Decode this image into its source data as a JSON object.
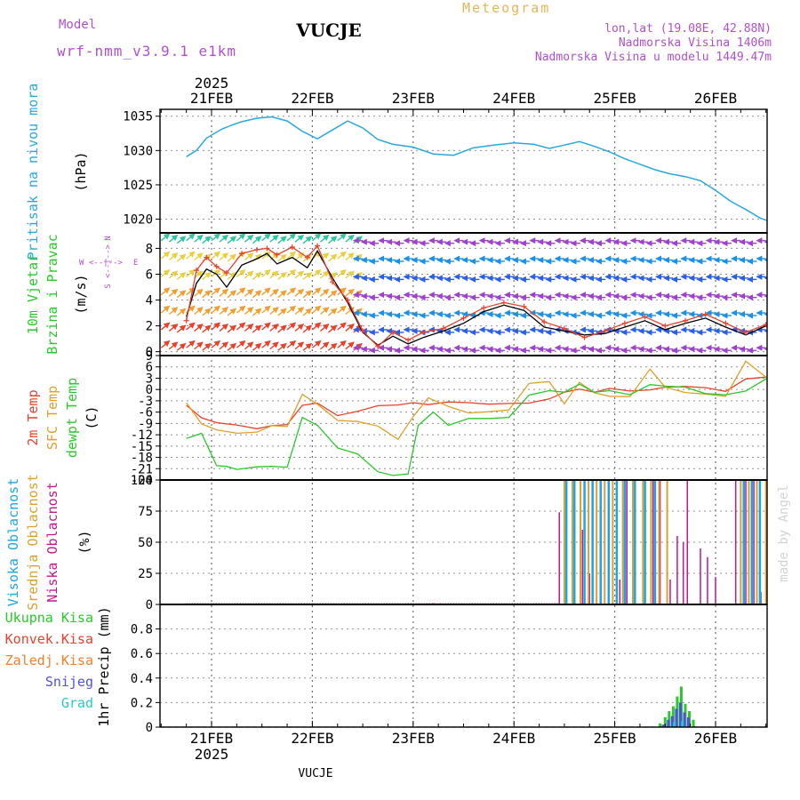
{
  "header": {
    "model_label": "Model",
    "model_name": "wrf-nmm_v3.9.1 e1km",
    "station": "VUCJE",
    "meteogram": "Meteogram",
    "lonlat": "lon,lat (19.08E, 42.88N)",
    "elevation": "Nadmorska Visina 1406m",
    "model_elevation": "Nadmorska Visina u modelu 1449.47m",
    "footer_station": "VUCJE",
    "credit": "made by Angel",
    "year_top": "2025",
    "year_bottom": "2025"
  },
  "colors": {
    "pressure": "#29a8e0",
    "wind_speed": "#000000",
    "wind_gust": "#e8412c",
    "t2m": "#e8412c",
    "tsfc": "#e0a02c",
    "dewpoint": "#2ac82a",
    "cloud_high": "#19a6e6",
    "cloud_mid": "#d9a032",
    "cloud_low": "#c0188c",
    "precip_total": "#2ac82a",
    "precip_conv": "#e8412c",
    "precip_frz": "#f0802c",
    "snow": "#5050e0",
    "hail": "#2ac8c8",
    "title_orange": "#e8b45a",
    "info_purple": "#b050d0"
  },
  "axes": {
    "day_labels": [
      "21FEB",
      "22FEB",
      "23FEB",
      "24FEB",
      "25FEB",
      "26FEB"
    ],
    "time_range_days": [
      0,
      6.0
    ]
  },
  "panel_labels": {
    "pressure": {
      "lines": [
        "Pritisak na nivou mora"
      ],
      "unit": "(hPa)"
    },
    "wind": {
      "lines": [
        "10m Vjetar",
        "Brzina i Pravac"
      ],
      "unit": "(m/s)",
      "compass_n": "N",
      "compass_s": "S",
      "compass_w": "W",
      "compass_e": "E",
      "compass_axis": "<--|-->"
    },
    "temp": {
      "lines": [
        "2m Temp",
        "SFC Temp",
        "dewpt Temp"
      ],
      "unit": "(C)"
    },
    "cloud": {
      "lines": [
        "Visoka Oblacnost",
        "Srednja Oblacnost",
        "Niska Oblacnost"
      ],
      "unit": "(%)"
    },
    "precip": {
      "lines": [
        "Ukupna Kisa",
        "Konvek.Kisa",
        "Zaledj.Kisa",
        "Snijeg",
        "Grad"
      ],
      "unit": "1hr Precip (mm)"
    }
  },
  "chart_data": [
    {
      "type": "line",
      "panel": "pressure",
      "ylabel": "(hPa)",
      "ylim": [
        1018,
        1036
      ],
      "yticks": [
        1020,
        1025,
        1030,
        1035
      ],
      "grid": true,
      "x_unit": "days since 21FEB 00",
      "series": [
        {
          "name": "Pritisak na nivou mora",
          "x": [
            -0.25,
            -0.15,
            -0.05,
            0.1,
            0.2,
            0.3,
            0.45,
            0.6,
            0.75,
            0.9,
            1.05,
            1.2,
            1.35,
            1.5,
            1.65,
            1.8,
            2.0,
            2.2,
            2.4,
            2.6,
            2.8,
            3.0,
            3.2,
            3.35,
            3.5,
            3.65,
            3.8,
            3.95,
            4.1,
            4.25,
            4.4,
            4.55,
            4.7,
            4.85,
            5.0,
            5.15,
            5.3,
            5.45,
            5.6,
            5.75,
            5.9,
            6.05,
            6.25
          ],
          "values": [
            1029.1,
            1030.0,
            1031.8,
            1033.1,
            1033.7,
            1034.2,
            1034.7,
            1034.9,
            1034.3,
            1032.8,
            1031.7,
            1033.0,
            1034.3,
            1033.3,
            1031.6,
            1030.9,
            1030.5,
            1029.5,
            1029.3,
            1030.4,
            1030.8,
            1031.1,
            1030.9,
            1030.3,
            1030.8,
            1031.3,
            1030.6,
            1029.8,
            1028.8,
            1028.0,
            1027.2,
            1026.6,
            1026.2,
            1025.6,
            1024.2,
            1022.6,
            1021.4,
            1020.1,
            1019.4,
            1021.0,
            1021.6,
            1021.8,
            1021.4
          ]
        }
      ]
    },
    {
      "type": "line",
      "panel": "wind",
      "ylabel": "(m/s)",
      "ylim": [
        -0.3,
        9.2
      ],
      "yticks": [
        0,
        2,
        4,
        6,
        8
      ],
      "grid": true,
      "note": "wind direction barbs drawn as colored arrow bands",
      "series": [
        {
          "name": "speed",
          "x": [
            -0.25,
            -0.15,
            -0.05,
            0.05,
            0.15,
            0.3,
            0.45,
            0.55,
            0.65,
            0.8,
            0.95,
            1.05,
            1.2,
            1.35,
            1.5,
            1.65,
            1.8,
            1.95,
            2.1,
            2.3,
            2.5,
            2.7,
            2.9,
            3.1,
            3.3,
            3.5,
            3.7,
            3.9,
            4.1,
            4.3,
            4.5,
            4.7,
            4.9,
            5.1,
            5.3,
            5.5,
            5.7,
            5.9,
            6.1,
            6.25
          ],
          "values": [
            2.7,
            5.3,
            6.4,
            6.0,
            5.0,
            6.7,
            7.2,
            7.6,
            6.8,
            7.3,
            6.5,
            7.8,
            5.7,
            3.8,
            1.5,
            0.5,
            1.2,
            0.6,
            1.1,
            1.6,
            2.2,
            3.1,
            3.6,
            3.2,
            1.9,
            1.6,
            1.3,
            1.4,
            1.9,
            2.4,
            1.7,
            2.2,
            2.6,
            1.9,
            1.3,
            2.0,
            2.4,
            2.5,
            2.3,
            3.2
          ]
        },
        {
          "name": "gust",
          "x": [
            -0.25,
            -0.15,
            -0.05,
            0.05,
            0.15,
            0.3,
            0.45,
            0.55,
            0.65,
            0.8,
            0.95,
            1.05,
            1.2,
            1.35,
            1.5,
            1.65,
            1.8,
            1.95,
            2.1,
            2.3,
            2.5,
            2.7,
            2.9,
            3.1,
            3.3,
            3.5,
            3.7,
            3.9,
            4.1,
            4.3,
            4.5,
            4.7,
            4.9,
            5.1,
            5.3,
            5.5,
            5.7,
            5.9,
            6.1,
            6.25
          ],
          "values": [
            2.4,
            6.3,
            7.3,
            6.6,
            6.1,
            7.6,
            7.9,
            8.0,
            7.5,
            8.1,
            7.3,
            8.2,
            5.4,
            4.0,
            1.6,
            0.4,
            1.5,
            0.9,
            1.5,
            1.8,
            2.6,
            3.4,
            3.8,
            3.5,
            2.3,
            1.8,
            1.1,
            1.6,
            2.2,
            2.7,
            2.0,
            2.4,
            2.9,
            2.2,
            1.5,
            2.1,
            2.2,
            2.3,
            2.2,
            3.4
          ]
        }
      ]
    },
    {
      "type": "line",
      "panel": "temp",
      "ylabel": "(C)",
      "ylim": [
        -24,
        9
      ],
      "yticks": [
        9,
        6,
        3,
        0,
        -3,
        -6,
        -9,
        -12,
        -15,
        -18,
        -21,
        -24
      ],
      "grid": true,
      "series": [
        {
          "name": "2m Temp",
          "x": [
            -0.25,
            -0.1,
            0.05,
            0.25,
            0.45,
            0.6,
            0.75,
            0.9,
            1.05,
            1.25,
            1.45,
            1.65,
            1.85,
            2.0,
            2.15,
            2.35,
            2.55,
            2.75,
            2.95,
            3.15,
            3.35,
            3.5,
            3.65,
            3.8,
            3.95,
            4.15,
            4.35,
            4.5,
            4.7,
            4.9,
            5.1,
            5.3,
            5.5,
            5.7,
            5.9,
            6.05,
            6.25
          ],
          "values": [
            -4.2,
            -7.5,
            -8.8,
            -9.4,
            -10.4,
            -9.6,
            -9.3,
            -4.2,
            -3.6,
            -6.9,
            -5.8,
            -4.3,
            -4.1,
            -3.5,
            -4.0,
            -3.3,
            -3.5,
            -3.9,
            -3.7,
            -3.6,
            -2.5,
            -0.7,
            0.1,
            -0.7,
            0.3,
            -0.4,
            -0.1,
            0.6,
            0.8,
            0.5,
            -0.5,
            2.8,
            3.3,
            0.9,
            -0.1,
            0.4,
            2.5
          ]
        },
        {
          "name": "SFC Temp",
          "x": [
            -0.25,
            -0.1,
            0.05,
            0.25,
            0.45,
            0.6,
            0.75,
            0.9,
            1.05,
            1.25,
            1.45,
            1.65,
            1.85,
            2.0,
            2.15,
            2.35,
            2.55,
            2.75,
            2.95,
            3.15,
            3.35,
            3.5,
            3.65,
            3.8,
            3.95,
            4.15,
            4.35,
            4.5,
            4.7,
            4.9,
            5.1,
            5.3,
            5.5,
            5.7,
            5.9,
            6.05,
            6.25
          ],
          "values": [
            -3.5,
            -9.1,
            -10.7,
            -11.6,
            -11.3,
            -9.6,
            -9.8,
            -1.3,
            -3.9,
            -8.2,
            -8.5,
            -9.7,
            -13.2,
            -7.2,
            -2.2,
            -4.5,
            -6.2,
            -5.9,
            -5.4,
            1.6,
            2.1,
            -3.8,
            1.9,
            -0.9,
            -1.8,
            -1.9,
            5.4,
            0.6,
            -0.8,
            -1.2,
            -1.8,
            7.5,
            3.3,
            -0.7,
            -1.9,
            0.9,
            5.4
          ]
        },
        {
          "name": "dewpt Temp",
          "x": [
            -0.25,
            -0.1,
            0.05,
            0.15,
            0.25,
            0.45,
            0.6,
            0.75,
            0.9,
            1.05,
            1.25,
            1.45,
            1.65,
            1.8,
            1.95,
            2.05,
            2.2,
            2.35,
            2.55,
            2.75,
            2.95,
            3.15,
            3.35,
            3.5,
            3.65,
            3.8,
            3.95,
            4.15,
            4.35,
            4.5,
            4.7,
            4.9,
            5.1,
            5.3,
            5.5,
            5.7,
            5.9,
            6.05,
            6.25
          ],
          "values": [
            -13.0,
            -11.6,
            -20.2,
            -20.4,
            -21.2,
            -20.5,
            -20.4,
            -20.6,
            -7.4,
            -9.5,
            -15.5,
            -17.1,
            -21.8,
            -22.8,
            -22.4,
            -9.5,
            -6.0,
            -9.5,
            -7.7,
            -7.7,
            -7.4,
            -1.5,
            -0.3,
            -0.7,
            1.4,
            -0.7,
            -0.3,
            -1.4,
            1.3,
            0.9,
            0.6,
            -1.1,
            -1.4,
            -0.4,
            2.8,
            0.2,
            -1.5,
            -2.0,
            2.4
          ]
        }
      ]
    },
    {
      "type": "bar",
      "panel": "cloud",
      "ylabel": "(%)",
      "ylim": [
        0,
        100
      ],
      "yticks": [
        0,
        25,
        50,
        75,
        100
      ],
      "grid": true,
      "series": [
        {
          "name": "Niska Oblacnost",
          "x": [
            2.2,
            3.7,
            3.45,
            3.52,
            3.6,
            3.68,
            3.75,
            3.82,
            3.9,
            3.98,
            4.05,
            4.12,
            4.2,
            4.3,
            4.38,
            4.45,
            4.55,
            4.62,
            4.68,
            4.72,
            4.85,
            4.92,
            5.0,
            5.2,
            5.3,
            5.38,
            5.45,
            5.52,
            5.6,
            5.68,
            5.75,
            5.85,
            5.95,
            6.05,
            6.12,
            6.2
          ],
          "values": [
            1,
            1,
            74,
            100,
            100,
            60,
            25,
            100,
            95,
            100,
            20,
            100,
            100,
            40,
            100,
            100,
            20,
            55,
            50,
            100,
            45,
            38,
            22,
            100,
            100,
            100,
            10,
            100,
            100,
            60,
            40,
            30,
            40,
            100,
            100,
            100
          ]
        },
        {
          "name": "Srednja Oblacnost",
          "x": [
            3.5,
            3.58,
            3.66,
            3.74,
            3.82,
            3.9,
            3.98,
            4.08,
            4.18,
            4.28,
            4.36,
            4.44,
            4.52,
            5.25,
            5.33,
            5.41,
            5.5,
            5.6,
            5.72,
            5.8,
            5.88,
            5.96,
            6.08,
            6.2
          ],
          "values": [
            100,
            100,
            100,
            100,
            100,
            100,
            100,
            100,
            100,
            100,
            100,
            100,
            100,
            100,
            100,
            100,
            100,
            55,
            75,
            60,
            90,
            100,
            100,
            100
          ]
        },
        {
          "name": "Visoka Oblacnost",
          "x": [
            3.52,
            3.6,
            3.7,
            3.78,
            3.86,
            3.94,
            4.02,
            4.1,
            4.2,
            4.3,
            4.4,
            5.28,
            5.36,
            5.44,
            5.52,
            5.62,
            5.7,
            5.8,
            5.9,
            5.98
          ],
          "values": [
            100,
            100,
            100,
            100,
            100,
            100,
            100,
            100,
            100,
            100,
            100,
            100,
            100,
            100,
            100,
            100,
            100,
            100,
            100,
            100
          ]
        }
      ]
    },
    {
      "type": "bar",
      "panel": "precip",
      "ylabel": "1hr Precip (mm)",
      "ylim": [
        0,
        1.0
      ],
      "yticks": [
        0,
        0.2,
        0.4,
        0.6,
        0.8
      ],
      "grid": true,
      "series": [
        {
          "name": "Ukupna Kisa",
          "x": [
            4.45,
            4.5,
            4.54,
            4.58,
            4.62,
            4.66,
            4.7,
            4.74,
            4.78,
            5.5,
            5.65,
            5.68,
            6.2,
            6.22,
            6.24
          ],
          "values": [
            0.03,
            0.08,
            0.13,
            0.17,
            0.25,
            0.33,
            0.19,
            0.13,
            0.06,
            0.01,
            0.03,
            0.05,
            0.25,
            0.65,
            0.35
          ]
        },
        {
          "name": "Snijeg",
          "x": [
            4.47,
            4.52,
            4.56,
            4.6,
            4.64,
            4.68,
            4.72,
            6.21
          ],
          "values": [
            0.02,
            0.06,
            0.09,
            0.15,
            0.2,
            0.12,
            0.08,
            0.15
          ]
        },
        {
          "name": "Grad",
          "x": [
            4.49,
            4.57,
            4.65
          ],
          "values": [
            0.01,
            0.04,
            0.05
          ]
        }
      ]
    }
  ]
}
